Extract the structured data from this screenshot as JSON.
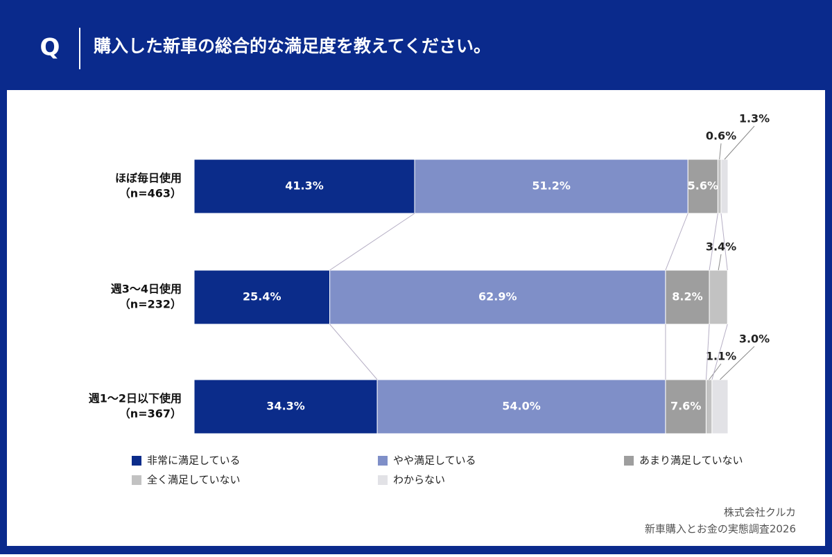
{
  "header": {
    "q": "Q",
    "title": "購入した新車の総合的な満足度を教えてください。"
  },
  "chart_data": {
    "type": "stacked-bar-horizontal",
    "categories": [
      "ほぼ毎日使用",
      "週3〜4日使用",
      "週1〜2日以下使用"
    ],
    "sample_sizes": [
      "（n=463）",
      "（n=232）",
      "（n=367）"
    ],
    "xlim": [
      0,
      100
    ],
    "series": [
      {
        "name": "非常に満足している",
        "color": "#0b2c8a",
        "values": [
          41.3,
          25.4,
          34.3
        ],
        "value_labels": [
          "41.3%",
          "25.4%",
          "34.3%"
        ]
      },
      {
        "name": "やや満足している",
        "color": "#7f8fc8",
        "values": [
          51.2,
          62.9,
          54.0
        ],
        "value_labels": [
          "51.2%",
          "62.9%",
          "54.0%"
        ]
      },
      {
        "name": "あまり満足していない",
        "color": "#9e9e9e",
        "values": [
          5.6,
          8.2,
          7.6
        ],
        "value_labels": [
          "5.6%",
          "8.2%",
          "7.6%"
        ]
      },
      {
        "name": "全く満足していない",
        "color": "#c2c2c2",
        "values": [
          0.6,
          3.4,
          1.1
        ],
        "value_labels": [
          "0.6%",
          "3.4%",
          "1.1%"
        ]
      },
      {
        "name": "わからない",
        "color": "#e2e2e6",
        "values": [
          1.3,
          null,
          3.0
        ],
        "value_labels": [
          "1.3%",
          null,
          "3.0%"
        ]
      }
    ]
  },
  "source": {
    "company": "株式会社クルカ",
    "survey": "新車購入とお金の実態調査2026"
  }
}
